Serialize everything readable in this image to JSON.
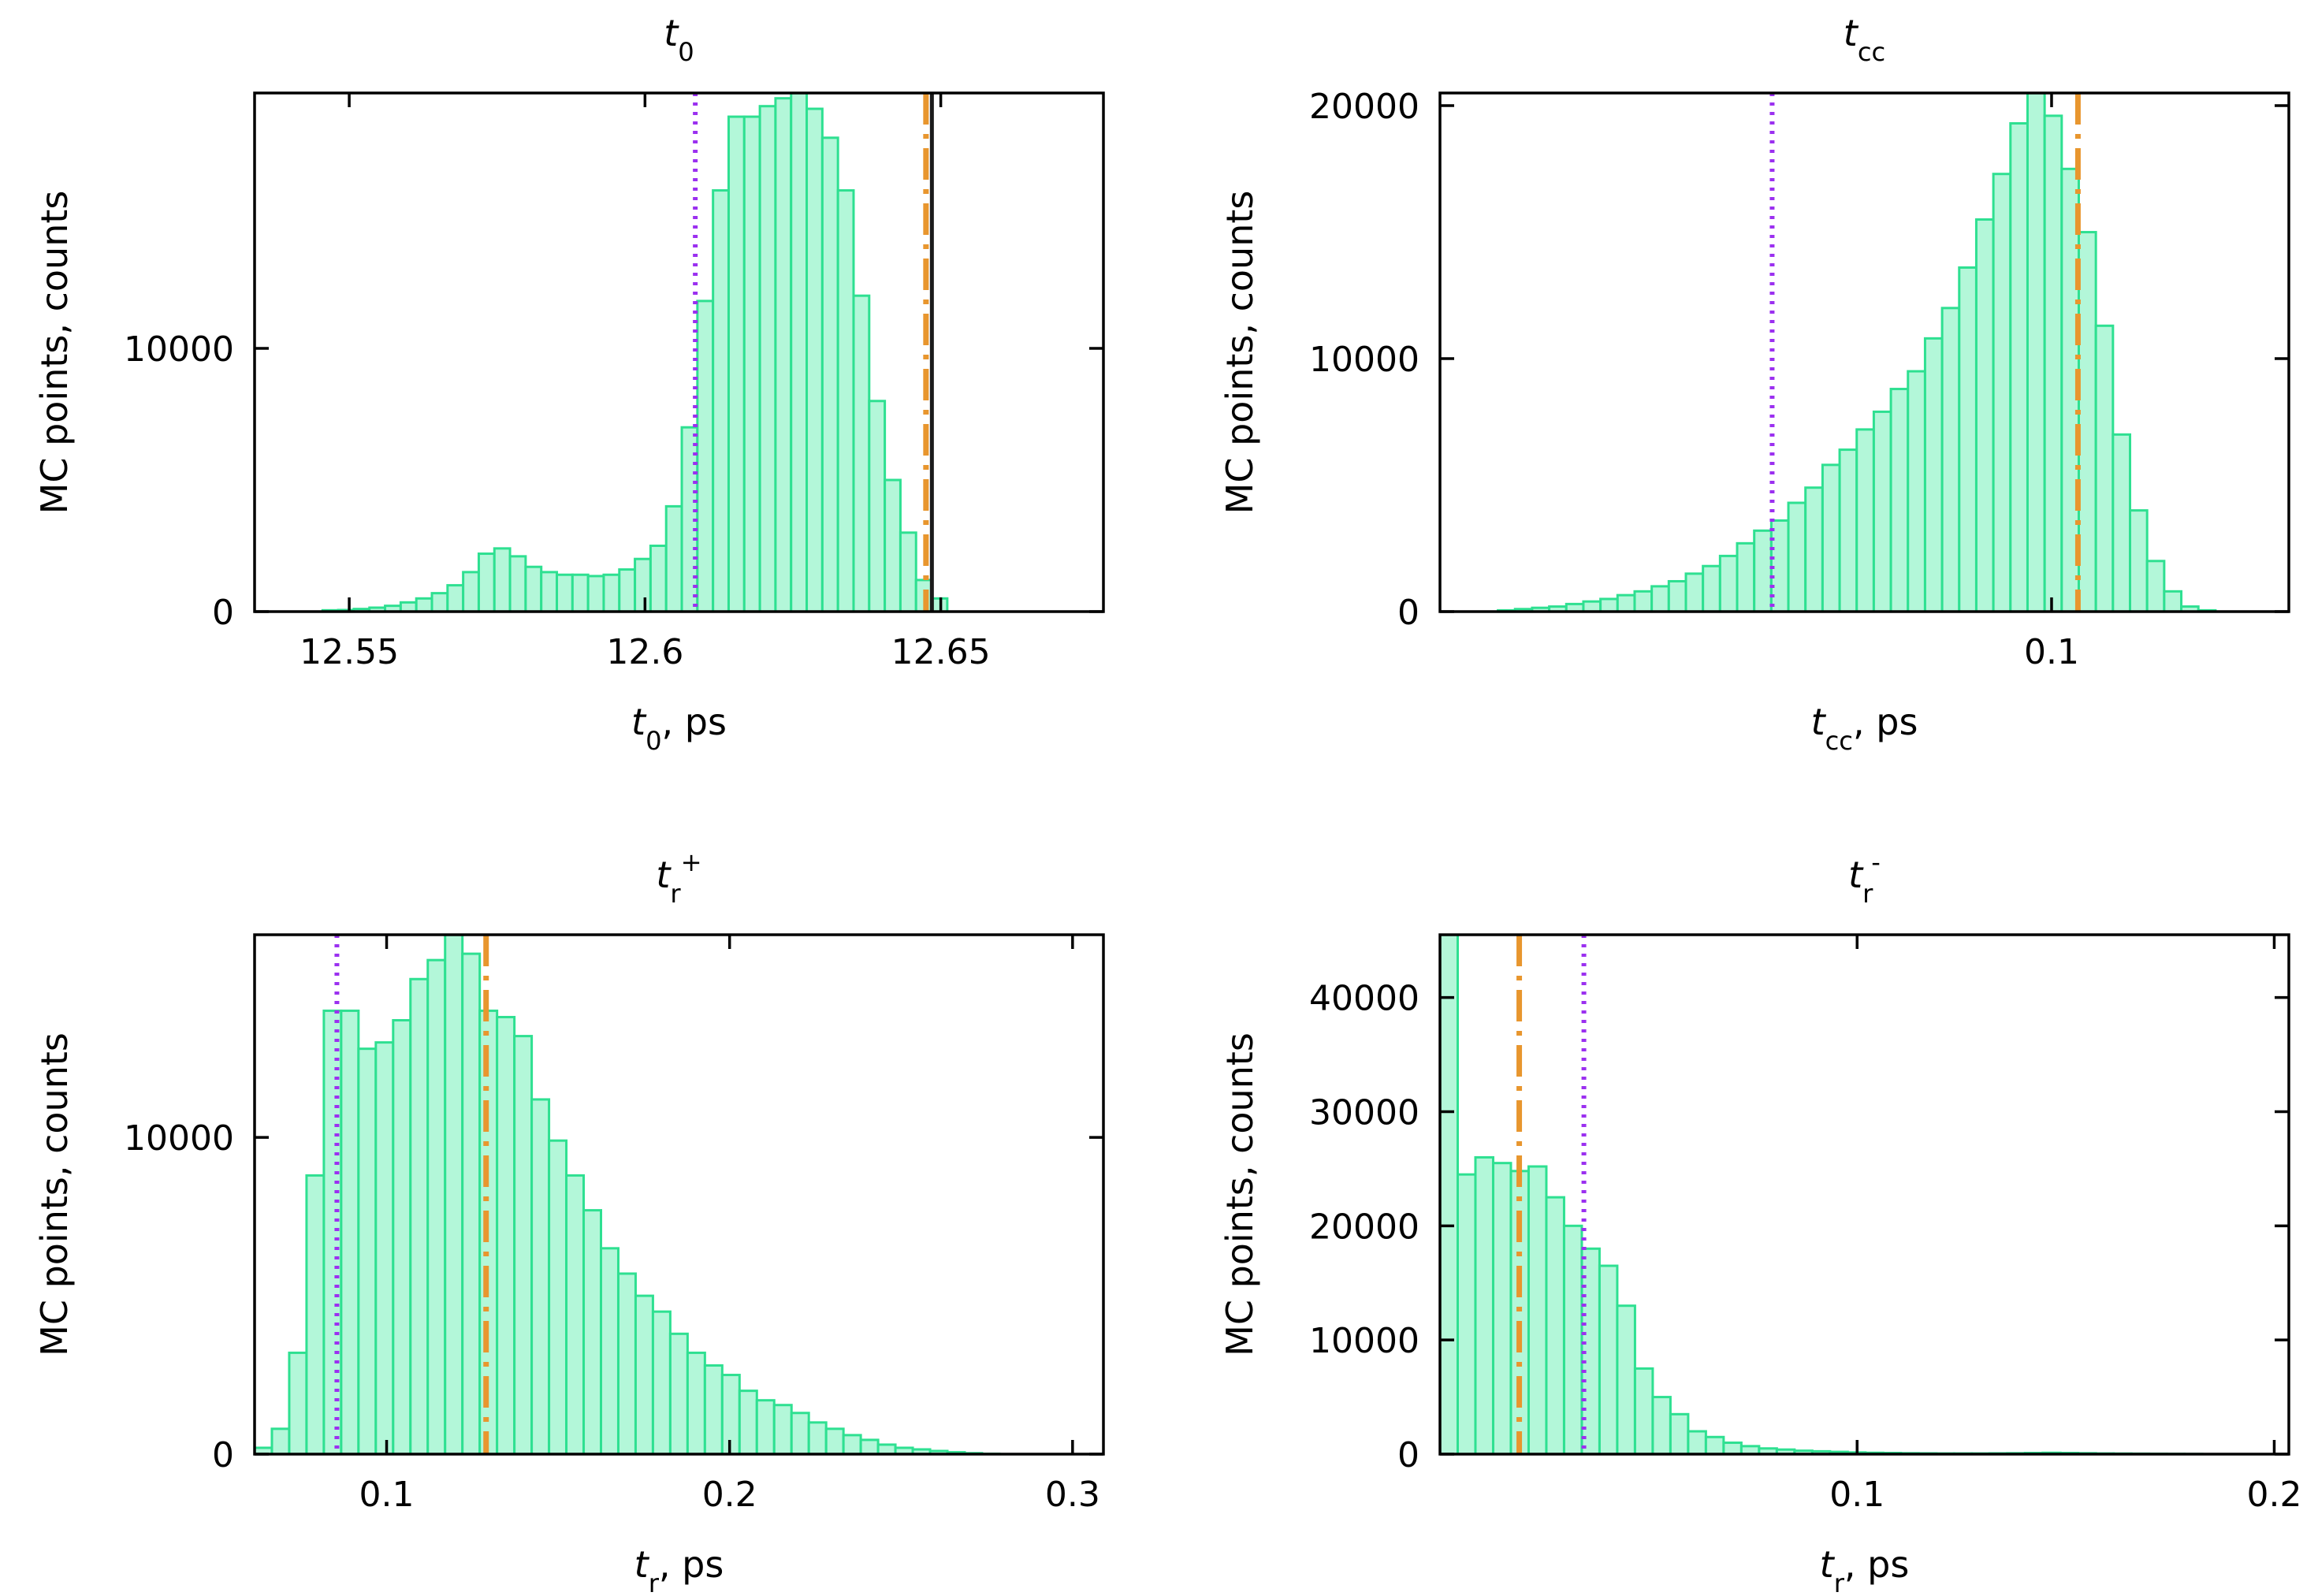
{
  "colors": {
    "bar_fill": "#b3f7d9",
    "bar_edge": "#2ee091",
    "dotted_line": "#9b30f0",
    "dashdot_line": "#e8962e",
    "solid_line": "#1a1a1a"
  },
  "chart_data": [
    {
      "type": "bar",
      "title": {
        "var": "t",
        "sub": "0",
        "sup": ""
      },
      "xlabel": {
        "var": "t",
        "sub": "0",
        "suffix": ", ps"
      },
      "ylabel": "MC points, counts",
      "xlim": [
        12.534,
        12.6775
      ],
      "ylim": [
        0,
        19700
      ],
      "xticks": [
        12.55,
        12.6,
        12.65
      ],
      "xtick_labels": [
        "12.55",
        "12.6",
        "12.65"
      ],
      "yticks": [
        0,
        10000
      ],
      "ytick_labels": [
        "0",
        "10000"
      ],
      "bin_start": 12.5455,
      "bin_width": 0.00264,
      "counts": [
        50,
        60,
        100,
        150,
        220,
        350,
        500,
        700,
        1000,
        1500,
        2200,
        2400,
        2100,
        1700,
        1500,
        1400,
        1400,
        1350,
        1400,
        1600,
        2000,
        2500,
        4000,
        7000,
        11800,
        16000,
        18800,
        18800,
        19200,
        19500,
        19700,
        19100,
        18000,
        16000,
        12000,
        8000,
        5000,
        3000,
        1200,
        500
      ],
      "markers": [
        {
          "style": "dotted",
          "x": 12.6085
        },
        {
          "style": "dashdot",
          "x": 12.6475
        },
        {
          "style": "solid",
          "x": 12.6485
        }
      ]
    },
    {
      "type": "bar",
      "title": {
        "var": "t",
        "sub": "cc",
        "sup": ""
      },
      "xlabel": {
        "var": "t",
        "sub": "cc",
        "suffix": ", ps"
      },
      "ylabel": "MC points, counts",
      "xlim": [
        0.042,
        0.1225
      ],
      "ylim": [
        0,
        20500
      ],
      "xticks": [
        0.1
      ],
      "xtick_labels": [
        "0.1"
      ],
      "yticks": [
        0,
        10000,
        20000
      ],
      "ytick_labels": [
        "0",
        "10000",
        "20000"
      ],
      "bin_start": 0.0475,
      "bin_width": 0.00162,
      "counts": [
        50,
        100,
        150,
        200,
        300,
        400,
        500,
        650,
        800,
        1000,
        1200,
        1500,
        1800,
        2200,
        2700,
        3200,
        3600,
        4300,
        4900,
        5800,
        6400,
        7200,
        7900,
        8800,
        9500,
        10800,
        12000,
        13600,
        15500,
        17300,
        19300,
        20500,
        19600,
        17500,
        15000,
        11300,
        7000,
        4000,
        2000,
        800,
        200,
        50
      ],
      "markers": [
        {
          "style": "dotted",
          "x": 0.0735
        },
        {
          "style": "dashdot",
          "x": 0.1025
        }
      ]
    },
    {
      "type": "bar",
      "title": {
        "var": "t",
        "sub": "r",
        "sup": "+"
      },
      "xlabel": {
        "var": "t",
        "sub": "r",
        "suffix": ", ps"
      },
      "ylabel": "MC points, counts",
      "xlim": [
        0.0615,
        0.309
      ],
      "ylim": [
        0,
        16400
      ],
      "xticks": [
        0.1,
        0.2,
        0.3
      ],
      "xtick_labels": [
        "0.1",
        "0.2",
        "0.3"
      ],
      "yticks": [
        0,
        10000
      ],
      "ytick_labels": [
        "0",
        "10000"
      ],
      "bin_start": 0.0615,
      "bin_width": 0.00505,
      "counts": [
        200,
        800,
        3200,
        8800,
        14000,
        14000,
        12800,
        13000,
        13700,
        15000,
        15600,
        16400,
        15800,
        14000,
        13800,
        13200,
        11200,
        9900,
        8800,
        7700,
        6500,
        5700,
        5000,
        4500,
        3800,
        3200,
        2800,
        2500,
        2000,
        1700,
        1550,
        1300,
        1000,
        800,
        600,
        450,
        300,
        200,
        150,
        100,
        60,
        30,
        10
      ],
      "markers": [
        {
          "style": "dotted",
          "x": 0.0855
        },
        {
          "style": "dashdot",
          "x": 0.129
        }
      ]
    },
    {
      "type": "bar",
      "title": {
        "var": "t",
        "sub": "r",
        "sup": "-"
      },
      "xlabel": {
        "var": "t",
        "sub": "r",
        "suffix": ", ps"
      },
      "ylabel": "MC points, counts",
      "xlim": [
        0,
        0.2035
      ],
      "ylim": [
        0,
        45500
      ],
      "xticks": [
        0.1,
        0.2
      ],
      "xtick_labels": [
        "0.1",
        "0.2"
      ],
      "yticks": [
        0,
        10000,
        20000,
        30000,
        40000
      ],
      "ytick_labels": [
        "0",
        "10000",
        "20000",
        "30000",
        "40000"
      ],
      "bin_start": 0,
      "bin_width": 0.00425,
      "counts": [
        45500,
        24500,
        26000,
        25500,
        24800,
        25200,
        22500,
        20000,
        18000,
        16500,
        13000,
        7500,
        5000,
        3500,
        2000,
        1500,
        1000,
        700,
        500,
        400,
        300,
        250,
        200,
        150,
        120,
        100,
        80,
        70,
        60,
        60,
        60,
        70,
        80,
        100,
        120,
        100,
        80,
        60,
        50,
        40,
        30,
        20,
        10
      ],
      "markers": [
        {
          "style": "dashdot",
          "x": 0.019
        },
        {
          "style": "dotted",
          "x": 0.0345
        }
      ]
    }
  ]
}
